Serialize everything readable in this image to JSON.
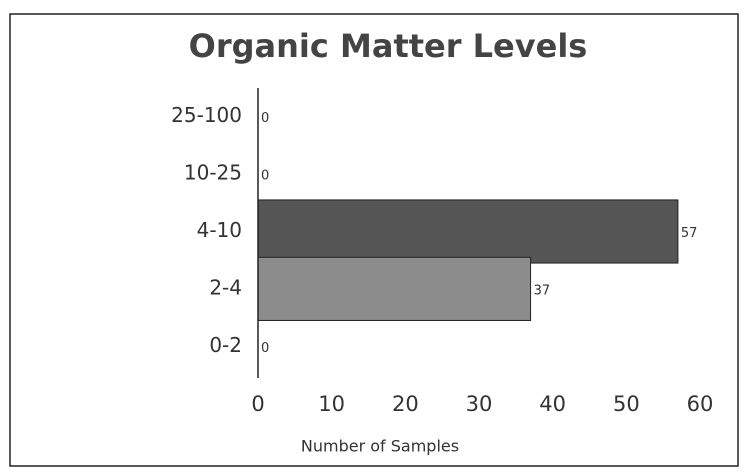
{
  "chart_data": {
    "type": "bar",
    "orientation": "horizontal",
    "title": "Organic Matter Levels",
    "categories": [
      "25-100",
      "10-25",
      "4-10",
      "2-4",
      "0-2"
    ],
    "values": [
      0,
      0,
      57,
      37,
      0
    ],
    "colors": [
      "#555555",
      "#555555",
      "#555555",
      "#8c8c8c",
      "#8c8c8c"
    ],
    "xlabel": "Number of Samples",
    "xlim": [
      0,
      60
    ],
    "xticks": [
      0,
      10,
      20,
      30,
      40,
      50,
      60
    ],
    "data_labels": true
  }
}
